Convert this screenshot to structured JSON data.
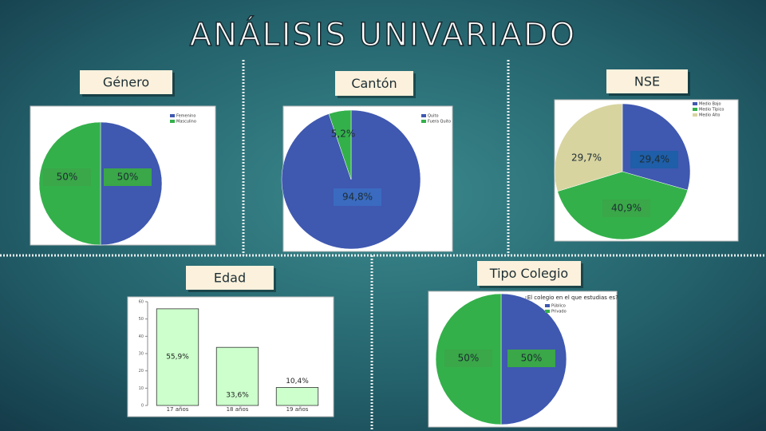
{
  "title": "ANÁLISIS UNIVARIADO",
  "chart_data": [
    {
      "type": "pie",
      "title": "Género",
      "categories": [
        "Femenino",
        "Masculino"
      ],
      "values": [
        50,
        50
      ],
      "value_labels": [
        "50%",
        "50%"
      ],
      "colors": [
        "#3f58b0",
        "#33b04a"
      ]
    },
    {
      "type": "pie",
      "title": "Cantón",
      "categories": [
        "Quito",
        "Fuera Quito"
      ],
      "values": [
        94.8,
        5.2
      ],
      "value_labels": [
        "94,8%",
        "5,2%"
      ],
      "colors": [
        "#3f58b0",
        "#33b04a"
      ]
    },
    {
      "type": "pie",
      "title": "NSE",
      "categories": [
        "Medio Bajo",
        "Medio Típico",
        "Medio Alto"
      ],
      "values": [
        29.4,
        40.9,
        29.7
      ],
      "value_labels": [
        "29,4%",
        "40,9%",
        "29,7%"
      ],
      "colors": [
        "#3f58b0",
        "#33b04a",
        "#d8d4a0"
      ]
    },
    {
      "type": "bar",
      "title": "Edad",
      "categories": [
        "17 años",
        "18 años",
        "19 años"
      ],
      "values": [
        55.9,
        33.6,
        10.4
      ],
      "value_labels": [
        "55,9%",
        "33,6%",
        "10,4%"
      ],
      "color": "#ccffcc",
      "ylim": [
        0,
        60
      ],
      "yticks": [
        0,
        10,
        20,
        30,
        40,
        50,
        60
      ]
    },
    {
      "type": "pie",
      "title": "Tipo Colegio",
      "subtitle": "¿El colegio en el que estudias es?",
      "categories": [
        "Público",
        "Privado"
      ],
      "values": [
        50,
        50
      ],
      "value_labels": [
        "50%",
        "50%"
      ],
      "colors": [
        "#3f58b0",
        "#33b04a"
      ]
    }
  ]
}
